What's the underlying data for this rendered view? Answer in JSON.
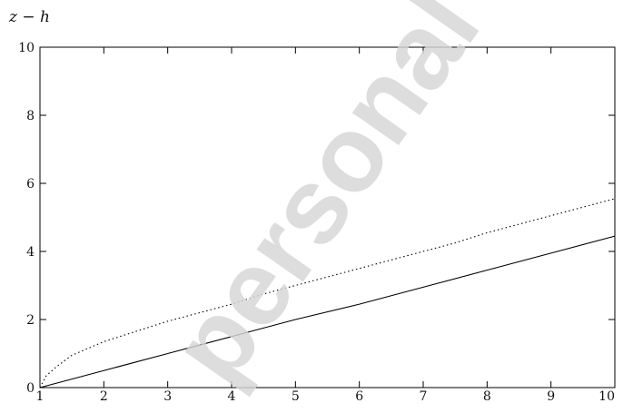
{
  "watermark": "personal",
  "chart_data": {
    "type": "line",
    "title": "",
    "ylabel": "z − h",
    "xlabel": "",
    "xlim": [
      1,
      10
    ],
    "ylim": [
      0,
      10
    ],
    "xticks": [
      1,
      2,
      3,
      4,
      5,
      6,
      7,
      8,
      9,
      10
    ],
    "yticks": [
      0,
      2,
      4,
      6,
      8,
      10
    ],
    "grid": false,
    "legend": "none",
    "series": [
      {
        "style": "solid",
        "color": "#000000",
        "x": [
          1,
          2,
          3,
          4,
          5,
          6,
          7,
          8,
          9,
          10
        ],
        "y": [
          0,
          0.5,
          1.0,
          1.5,
          2.0,
          2.45,
          2.95,
          3.45,
          3.95,
          4.45
        ]
      },
      {
        "style": "dotted",
        "color": "#000000",
        "x": [
          1,
          1.1,
          1.25,
          1.5,
          1.75,
          2,
          2.5,
          3,
          3.5,
          4,
          4.5,
          5,
          5.5,
          6,
          6.5,
          7,
          7.5,
          8,
          8.5,
          9,
          9.5,
          10
        ],
        "y": [
          0,
          0.35,
          0.6,
          0.95,
          1.15,
          1.35,
          1.65,
          1.95,
          2.2,
          2.45,
          2.75,
          3.0,
          3.25,
          3.5,
          3.75,
          4.0,
          4.25,
          4.55,
          4.8,
          5.05,
          5.3,
          5.55
        ]
      }
    ]
  }
}
